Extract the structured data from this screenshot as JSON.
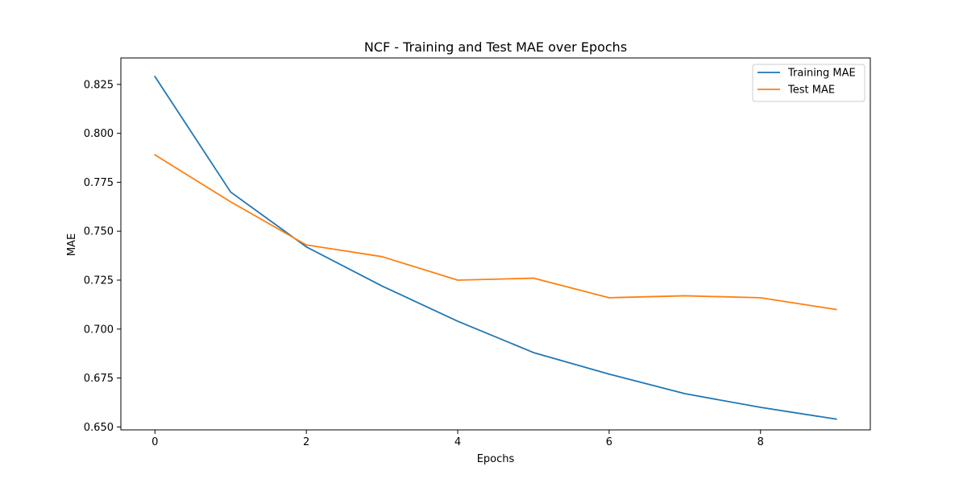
{
  "chart_data": {
    "type": "line",
    "title": "NCF - Training and Test MAE over Epochs",
    "xlabel": "Epochs",
    "ylabel": "MAE",
    "x": [
      0,
      1,
      2,
      3,
      4,
      5,
      6,
      7,
      8,
      9
    ],
    "series": [
      {
        "name": "Training MAE",
        "color": "#1f77b4",
        "values": [
          0.829,
          0.77,
          0.742,
          0.722,
          0.704,
          0.688,
          0.677,
          0.667,
          0.66,
          0.654
        ]
      },
      {
        "name": "Test MAE",
        "color": "#ff7f0e",
        "values": [
          0.789,
          0.765,
          0.743,
          0.737,
          0.725,
          0.726,
          0.716,
          0.717,
          0.716,
          0.71
        ]
      }
    ],
    "xlim": [
      -0.45,
      9.45
    ],
    "ylim": [
      0.6485,
      0.8385
    ],
    "xticks": [
      0,
      2,
      4,
      6,
      8
    ],
    "xtick_labels": [
      "0",
      "2",
      "4",
      "6",
      "8"
    ],
    "yticks": [
      0.65,
      0.675,
      0.7,
      0.725,
      0.75,
      0.775,
      0.8,
      0.825
    ],
    "ytick_labels": [
      "0.650",
      "0.675",
      "0.700",
      "0.725",
      "0.750",
      "0.775",
      "0.800",
      "0.825"
    ],
    "grid": false,
    "legend_position": "top-right"
  }
}
